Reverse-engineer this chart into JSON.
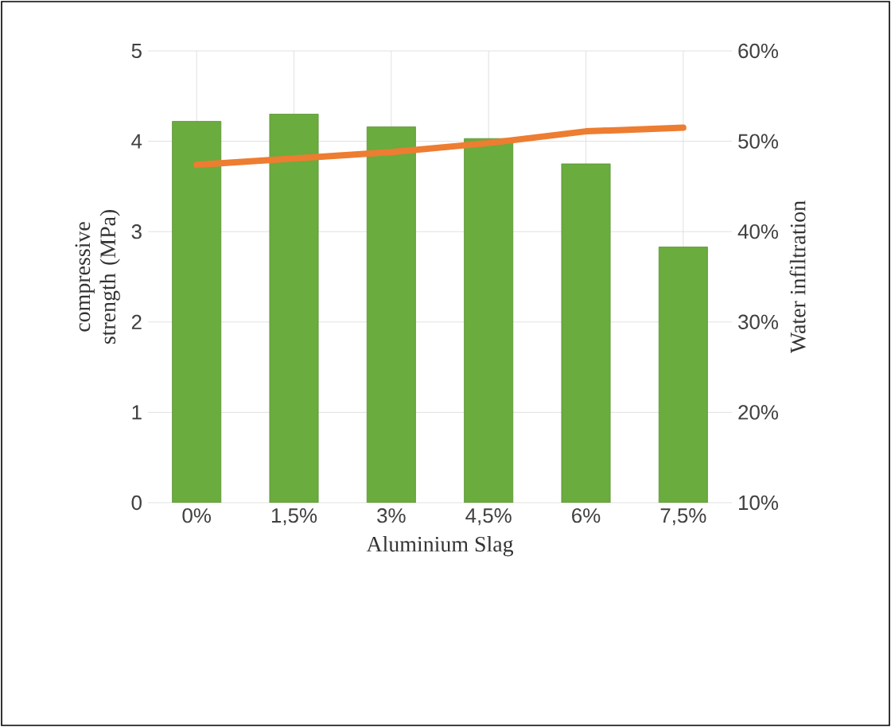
{
  "chart_data": {
    "type": "bar",
    "xlabel": "Aluminium Slag",
    "ylabel": "compressive strength (MPa)",
    "y2label": "Water infiltration",
    "categories": [
      "0%",
      "1,5%",
      "3%",
      "4,5%",
      "6%",
      "7,5%"
    ],
    "series": [
      {
        "color": "#6aac3e",
        "values": [
          4.22,
          4.3,
          4.16,
          4.03,
          3.75,
          2.83
        ]
      },
      {
        "type": "line",
        "axis": "y2",
        "color": "#ed7d31",
        "values": [
          47.4,
          48.1,
          48.8,
          49.8,
          51.1,
          51.5
        ]
      }
    ],
    "ylim": [
      0,
      5
    ],
    "yticks": [
      0,
      1,
      2,
      3,
      4,
      5
    ],
    "y2lim": [
      10,
      60
    ],
    "y2ticks": [
      {
        "value": 10,
        "label": "10%"
      },
      {
        "value": 20,
        "label": "20%"
      },
      {
        "value": 30,
        "label": "30%"
      },
      {
        "value": 40,
        "label": "40%"
      },
      {
        "value": 50,
        "label": "50%"
      },
      {
        "value": 60,
        "label": "60%"
      }
    ],
    "grid": true
  }
}
